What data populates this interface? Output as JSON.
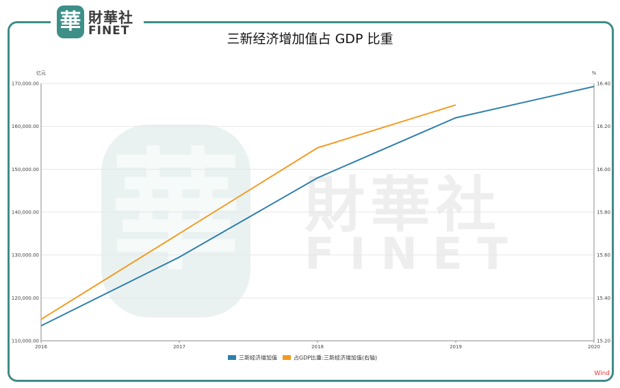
{
  "logo": {
    "seal": "華",
    "cn": "財華社",
    "en": "FINET"
  },
  "watermark": {
    "seal": "華",
    "cn": "財華社",
    "en": "FINET"
  },
  "source": "Wind",
  "colors": {
    "series1": "#2e7fab",
    "series2": "#f39a1f",
    "frame": "#3e8a86"
  },
  "chart_data": {
    "type": "line",
    "title": "三新经济增加值占 GDP 比重",
    "x": [
      "2016",
      "2017",
      "2018",
      "2019",
      "2020"
    ],
    "y_left_label": "亿元",
    "y_right_label": "%",
    "y_left_ticks": [
      "110,000.00",
      "120,000.00",
      "130,000.00",
      "140,000.00",
      "150,000.00",
      "160,000.00",
      "170,000.00"
    ],
    "y_right_ticks": [
      "15.20",
      "15.40",
      "15.60",
      "15.80",
      "16.00",
      "16.20",
      "16.40"
    ],
    "y_left_lim": [
      110000,
      170000
    ],
    "y_right_lim": [
      15.2,
      16.4
    ],
    "grid": true,
    "legend_position": "bottom",
    "series": [
      {
        "name": "三新经济增加值",
        "axis": "left",
        "color": "#2e7fab",
        "values": [
          113500,
          129500,
          148000,
          162000,
          169300
        ]
      },
      {
        "name": "占GDP比重:三新经济增加值(右轴)",
        "axis": "right",
        "color": "#f39a1f",
        "values": [
          15.3,
          15.7,
          16.1,
          16.3,
          null
        ]
      }
    ]
  }
}
